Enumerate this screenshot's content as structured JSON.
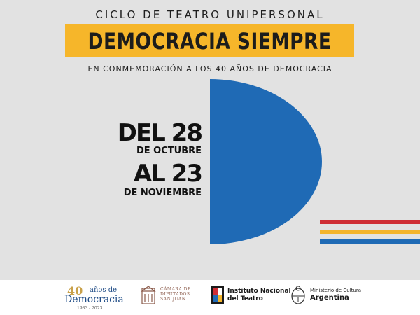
{
  "header": {
    "eyebrow": "CICLO DE TEATRO UNIPERSONAL",
    "title": "DEMOCRACIA SIEMPRE",
    "subtitle": "EN CONMEMORACIÓN A LOS 40 AÑOS DE DEMOCRACIA"
  },
  "dates": {
    "from_big": "DEL 28",
    "from_small": "DE OCTUBRE",
    "to_big": "AL 23",
    "to_small": "DE NOVIEMBRE"
  },
  "colors": {
    "background": "#e2e2e2",
    "title_box": "#f6b62a",
    "half_circle": "#1f6ab5",
    "stripe_red": "#cf2e35",
    "stripe_yellow": "#f3b42c",
    "stripe_blue": "#1f6ab5"
  },
  "footer": {
    "logo_40": {
      "number": "40",
      "top_text": "años de",
      "main_text": "Democracia",
      "years": "1983 - 2023"
    },
    "camara": {
      "icon": "building-seal-icon",
      "line1": "CÁMARA DE",
      "line2": "DIPUTADOS",
      "line3": "SAN JUAN"
    },
    "inteatro": {
      "icon": "inteatro-mark-icon",
      "line1": "Instituto Nacional",
      "line2": "del Teatro"
    },
    "ministerio": {
      "icon": "national-shield-icon",
      "line1": "Ministerio de Cultura",
      "line2": "Argentina"
    }
  }
}
